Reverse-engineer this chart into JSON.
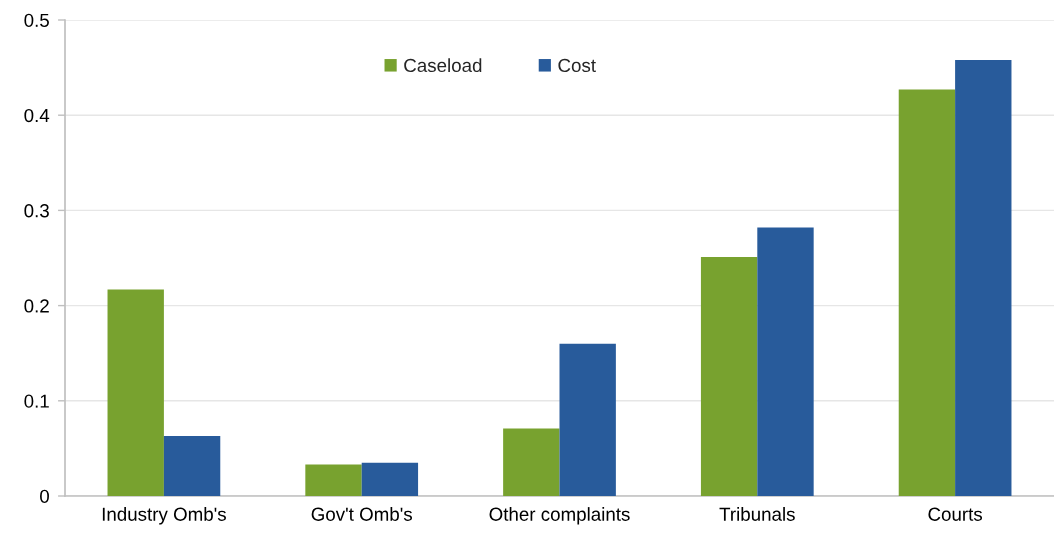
{
  "chart_data": {
    "type": "bar",
    "categories": [
      "Industry Omb's",
      "Gov't Omb's",
      "Other complaints",
      "Tribunals",
      "Courts"
    ],
    "series": [
      {
        "name": "Caseload",
        "color": "#78a22f",
        "values": [
          0.217,
          0.033,
          0.071,
          0.251,
          0.427
        ]
      },
      {
        "name": "Cost",
        "color": "#285b9b",
        "values": [
          0.063,
          0.035,
          0.16,
          0.282,
          0.458
        ]
      }
    ],
    "ylim": [
      0,
      0.5
    ],
    "yticks": [
      0,
      0.1,
      0.2,
      0.3,
      0.4,
      0.5
    ],
    "grid": "y",
    "legend": "top"
  }
}
